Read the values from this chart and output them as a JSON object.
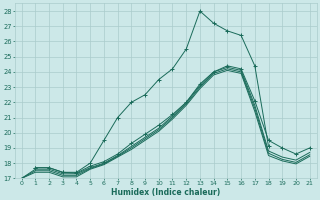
{
  "xlabel": "Humidex (Indice chaleur)",
  "background_color": "#cce8e8",
  "grid_color": "#aacccc",
  "line_color": "#1a6b5a",
  "xlim": [
    -0.5,
    21.5
  ],
  "ylim": [
    17,
    28.5
  ],
  "xticks": [
    0,
    1,
    2,
    3,
    4,
    5,
    6,
    7,
    8,
    9,
    10,
    11,
    12,
    13,
    14,
    15,
    16,
    17,
    18,
    19,
    20,
    21
  ],
  "yticks": [
    17,
    18,
    19,
    20,
    21,
    22,
    23,
    24,
    25,
    26,
    27,
    28
  ],
  "lines": [
    {
      "x": [
        1,
        2,
        3,
        4,
        5,
        6,
        7,
        8,
        9,
        10,
        11,
        12,
        13,
        14,
        15,
        16,
        17,
        18
      ],
      "y": [
        17.7,
        17.7,
        17.4,
        17.4,
        18.0,
        19.5,
        21.0,
        22.0,
        22.5,
        23.5,
        24.2,
        25.5,
        28.0,
        27.2,
        26.7,
        26.4,
        24.4,
        19.1
      ],
      "marker": true
    },
    {
      "x": [
        1,
        2,
        3,
        4,
        5,
        6,
        7,
        8,
        9,
        10,
        11,
        12,
        13,
        14,
        15,
        16,
        17,
        18,
        19,
        20,
        21
      ],
      "y": [
        17.7,
        17.7,
        17.4,
        17.35,
        17.8,
        18.1,
        18.6,
        19.3,
        19.9,
        20.5,
        21.2,
        22.0,
        23.2,
        24.0,
        24.4,
        24.2,
        22.1,
        19.5,
        19.0,
        18.6,
        19.0
      ],
      "marker": true
    },
    {
      "x": [
        0,
        1,
        2,
        3,
        4,
        5,
        6,
        7,
        8,
        9,
        10,
        11,
        12,
        13,
        14,
        15,
        16,
        17,
        18,
        19,
        20,
        21
      ],
      "y": [
        17,
        17.6,
        17.6,
        17.3,
        17.3,
        17.7,
        18.0,
        18.5,
        19.1,
        19.7,
        20.3,
        21.1,
        22.0,
        23.1,
        24.0,
        24.3,
        24.1,
        21.8,
        18.8,
        18.4,
        18.2,
        18.7
      ],
      "marker": false
    },
    {
      "x": [
        0,
        1,
        2,
        3,
        4,
        5,
        6,
        7,
        8,
        9,
        10,
        11,
        12,
        13,
        14,
        15,
        16,
        17,
        18,
        19,
        20,
        21
      ],
      "y": [
        17,
        17.5,
        17.5,
        17.2,
        17.2,
        17.65,
        17.95,
        18.45,
        19.0,
        19.6,
        20.2,
        21.0,
        21.9,
        23.0,
        23.9,
        24.2,
        24.0,
        21.6,
        18.65,
        18.25,
        18.05,
        18.55
      ],
      "marker": false
    },
    {
      "x": [
        0,
        1,
        2,
        3,
        4,
        5,
        6,
        7,
        8,
        9,
        10,
        11,
        12,
        13,
        14,
        15,
        16,
        17,
        18,
        19,
        20,
        21
      ],
      "y": [
        17,
        17.4,
        17.4,
        17.1,
        17.1,
        17.6,
        17.9,
        18.4,
        18.9,
        19.5,
        20.1,
        20.9,
        21.8,
        22.9,
        23.8,
        24.1,
        23.9,
        21.4,
        18.5,
        18.15,
        17.95,
        18.45
      ],
      "marker": false
    }
  ]
}
